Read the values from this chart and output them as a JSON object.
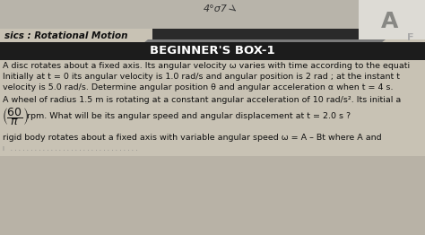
{
  "page_bg": "#c8c2b4",
  "header_bg": "#1e1e1e",
  "header_text": "BEGINNER'S BOX-1",
  "header_text_color": "#ffffff",
  "top_label": "sics : Rotational Motion",
  "top_label_color": "#111111",
  "handwriting": "4°σ7",
  "handwriting_color": "#333333",
  "line1": "A disc rotates about a fixed axis. Its angular velocity ω varies with time according to the equati",
  "line2": "Initially at t = 0 its angular velocity is 1.0 rad/s and angular position is 2 rad ; at the instant t",
  "line3": "velocity is 5.0 rad/s. Determine angular position θ and angular acceleration α when t = 4 s.",
  "line4": "A wheel of radius 1.5 m is rotating at a constant angular acceleration of 10 rad/s². Its initial a",
  "fraction_num": "60",
  "fraction_den": "π",
  "line5": "rpm. What will be its angular speed and angular displacement at t = 2.0 s ?",
  "line6": "rigid body rotates about a fixed axis with variable angular speed ω = A – Bt where A and",
  "body_text_color": "#111111",
  "corner_letter": "A",
  "top_dark_color": "#3a3a3a",
  "top_mid_color": "#6a6a6a",
  "top_light_color": "#999999",
  "white_panel_color": "#e0ddd8"
}
